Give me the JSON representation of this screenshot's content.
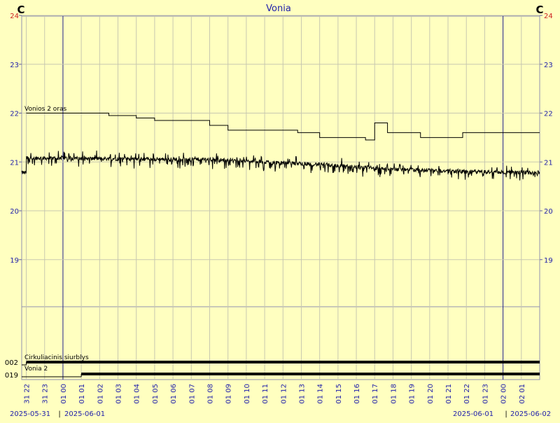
{
  "chart_data": {
    "type": "line",
    "title": "Vonia",
    "unit_left": "C",
    "unit_right": "C",
    "y_ticks_main": [
      "19",
      "20",
      "21",
      "22",
      "23",
      "24"
    ],
    "ylim_main": [
      18.1,
      24
    ],
    "x_ticks": [
      "31 22",
      "31 23",
      "01 00",
      "01 01",
      "01 02",
      "01 03",
      "01 04",
      "01 05",
      "01 06",
      "01 07",
      "01 08",
      "01 09",
      "01 10",
      "01 11",
      "01 12",
      "01 13",
      "01 14",
      "01 15",
      "01 16",
      "01 17",
      "01 18",
      "01 19",
      "01 20",
      "01 21",
      "01 22",
      "01 23",
      "02 00",
      "02 01"
    ],
    "x_range_hours": [
      "2025-05-31 21:45",
      "2025-06-02 01:45"
    ],
    "day_boundaries": [
      "2025-06-01 00:00",
      "2025-06-02 00:00"
    ],
    "date_labels": [
      "2025-05-31",
      "2025-06-01",
      "2025-06-01",
      "2025-06-02"
    ],
    "grid": true,
    "series": [
      {
        "name": "Vonios 2 oras",
        "color": "#000000",
        "steps": [
          {
            "hour": 0.0,
            "value": 22.0
          },
          {
            "hour": 4.5,
            "value": 21.95
          },
          {
            "hour": 6.0,
            "value": 21.9
          },
          {
            "hour": 7.0,
            "value": 21.85
          },
          {
            "hour": 10.0,
            "value": 21.75
          },
          {
            "hour": 11.0,
            "value": 21.65
          },
          {
            "hour": 14.8,
            "value": 21.6
          },
          {
            "hour": 16.0,
            "value": 21.5
          },
          {
            "hour": 18.5,
            "value": 21.45
          },
          {
            "hour": 19.0,
            "value": 21.8
          },
          {
            "hour": 19.7,
            "value": 21.6
          },
          {
            "hour": 21.5,
            "value": 21.5
          },
          {
            "hour": 23.8,
            "value": 21.6
          }
        ]
      },
      {
        "name": "",
        "color": "#000000",
        "trend": [
          {
            "hour": 0.0,
            "value": 21.08
          },
          {
            "hour": 10.0,
            "value": 21.05
          },
          {
            "hour": 16.0,
            "value": 20.95
          },
          {
            "hour": 20.0,
            "value": 20.85
          },
          {
            "hour": 24.0,
            "value": 20.8
          },
          {
            "hour": 28.0,
            "value": 20.78
          }
        ]
      }
    ],
    "binary_series": [
      {
        "name": "Cirkuliacinis siurblys",
        "tick_label": "002",
        "on_from_hour": 0.0,
        "on_to_hour": 28.0
      },
      {
        "name": "Vonia 2",
        "tick_label": "019",
        "on_from_hour": 3.0,
        "on_to_hour": 28.0
      }
    ]
  }
}
